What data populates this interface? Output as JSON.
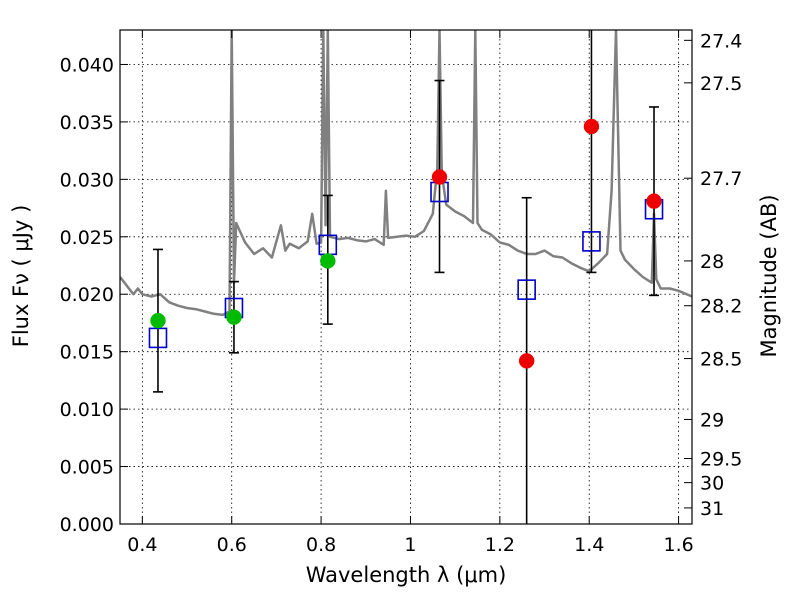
{
  "chart_data": {
    "type": "scatter",
    "title": "",
    "xlabel": "Wavelength  λ (μm)",
    "ylabel": "Flux  Fν  ( μJy )",
    "ylabel_right": "Magnitude (AB)",
    "xlim": [
      0.35,
      1.63
    ],
    "ylim": [
      0.0,
      0.043
    ],
    "grid": true,
    "x_ticks": [
      0.4,
      0.6,
      0.8,
      1.0,
      1.2,
      1.4,
      1.6
    ],
    "x_tick_labels": [
      "0.4",
      "0.6",
      "0.8",
      "1",
      "1.2",
      "1.4",
      "1.6"
    ],
    "y_ticks": [
      0.0,
      0.005,
      0.01,
      0.015,
      0.02,
      0.025,
      0.03,
      0.035,
      0.04
    ],
    "y_tick_labels": [
      "0.000",
      "0.005",
      "0.010",
      "0.015",
      "0.020",
      "0.025",
      "0.030",
      "0.035",
      "0.040"
    ],
    "right_ticks": [
      {
        "flux": 0.0421,
        "label": "27.4"
      },
      {
        "flux": 0.0384,
        "label": "27.5"
      },
      {
        "flux": 0.0301,
        "label": "27.7"
      },
      {
        "flux": 0.0229,
        "label": "28"
      },
      {
        "flux": 0.019,
        "label": "28.2"
      },
      {
        "flux": 0.0144,
        "label": "28.5"
      },
      {
        "flux": 0.0091,
        "label": "29"
      },
      {
        "flux": 0.0057,
        "label": "29.5"
      },
      {
        "flux": 0.0036,
        "label": "30"
      },
      {
        "flux": 0.0014,
        "label": "31"
      }
    ],
    "series": [
      {
        "kind": "line",
        "color": "#808080",
        "x": [
          0.35,
          0.36,
          0.37,
          0.38,
          0.39,
          0.4,
          0.42,
          0.44,
          0.46,
          0.48,
          0.5,
          0.52,
          0.54,
          0.56,
          0.58,
          0.595,
          0.6,
          0.605,
          0.61,
          0.63,
          0.65,
          0.67,
          0.69,
          0.71,
          0.72,
          0.73,
          0.75,
          0.77,
          0.78,
          0.79,
          0.8,
          0.805,
          0.81,
          0.815,
          0.82,
          0.84,
          0.86,
          0.88,
          0.9,
          0.92,
          0.94,
          0.945,
          0.95,
          0.97,
          0.99,
          1.01,
          1.03,
          1.05,
          1.06,
          1.065,
          1.07,
          1.08,
          1.1,
          1.12,
          1.14,
          1.145,
          1.15,
          1.16,
          1.18,
          1.2,
          1.22,
          1.24,
          1.26,
          1.28,
          1.3,
          1.32,
          1.34,
          1.36,
          1.38,
          1.4,
          1.42,
          1.44,
          1.45,
          1.46,
          1.47,
          1.48,
          1.5,
          1.52,
          1.54,
          1.545,
          1.55,
          1.56,
          1.58,
          1.6,
          1.63
        ],
        "y": [
          0.0215,
          0.021,
          0.0205,
          0.02,
          0.0205,
          0.02,
          0.0198,
          0.02,
          0.0193,
          0.019,
          0.0188,
          0.0187,
          0.0185,
          0.0183,
          0.0182,
          0.0185,
          0.043,
          0.021,
          0.0262,
          0.0245,
          0.0235,
          0.024,
          0.0232,
          0.026,
          0.0238,
          0.0244,
          0.024,
          0.0246,
          0.027,
          0.0244,
          0.0245,
          0.043,
          0.026,
          0.043,
          0.025,
          0.0248,
          0.0249,
          0.0247,
          0.0246,
          0.0248,
          0.0243,
          0.029,
          0.0249,
          0.025,
          0.0251,
          0.025,
          0.0255,
          0.027,
          0.031,
          0.043,
          0.0305,
          0.0278,
          0.0272,
          0.0268,
          0.0262,
          0.043,
          0.0262,
          0.0256,
          0.0252,
          0.0245,
          0.0243,
          0.0238,
          0.0235,
          0.0235,
          0.0238,
          0.0233,
          0.0232,
          0.0227,
          0.0223,
          0.022,
          0.0227,
          0.0235,
          0.029,
          0.043,
          0.0238,
          0.023,
          0.0222,
          0.0215,
          0.021,
          0.027,
          0.0213,
          0.0205,
          0.0205,
          0.0203,
          0.0198
        ]
      },
      {
        "kind": "errorbar",
        "color": "#000000",
        "x": [
          0.435,
          0.605,
          0.815,
          1.065,
          1.26,
          1.405,
          1.545
        ],
        "low": [
          0.0115,
          0.0149,
          0.0174,
          0.0219,
          0.0,
          0.0219,
          0.0199
        ],
        "high": [
          0.0239,
          0.0211,
          0.0286,
          0.0386,
          0.0284,
          0.043,
          0.0363
        ]
      },
      {
        "kind": "open-square",
        "color": "#0000cc",
        "x": [
          0.435,
          0.605,
          0.815,
          1.065,
          1.26,
          1.405,
          1.545
        ],
        "y": [
          0.0162,
          0.0188,
          0.0243,
          0.0289,
          0.0204,
          0.0246,
          0.0274
        ]
      },
      {
        "kind": "filled-circle",
        "color": "#00bb00",
        "x": [
          0.435,
          0.605,
          0.815
        ],
        "y": [
          0.0177,
          0.018,
          0.0229
        ]
      },
      {
        "kind": "filled-circle",
        "color": "#ee0000",
        "x": [
          1.065,
          1.26,
          1.405,
          1.545
        ],
        "y": [
          0.0302,
          0.0142,
          0.0346,
          0.0281
        ]
      }
    ]
  }
}
